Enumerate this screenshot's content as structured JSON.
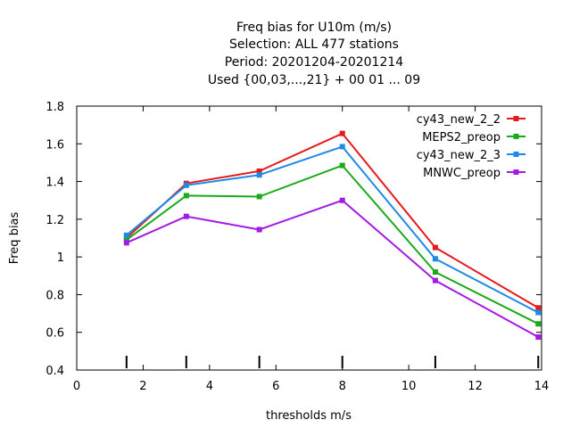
{
  "chart_data": {
    "type": "line",
    "title_lines": [
      "Freq bias  for U10m (m/s)",
      "Selection: ALL    477 stations",
      "Period: 20201204-20201214",
      "Used {00,03,...,21} + 00 01 ... 09"
    ],
    "xlabel": "thresholds m/s",
    "ylabel": "Freq bias",
    "xlim": [
      0,
      14
    ],
    "ylim": [
      0.4,
      1.8
    ],
    "xticks": [
      0,
      2,
      4,
      6,
      8,
      10,
      12,
      14
    ],
    "yticks": [
      0.4,
      0.6,
      0.8,
      1.0,
      1.2,
      1.4,
      1.6,
      1.8
    ],
    "xtick_labels": [
      "0",
      "2",
      "4",
      "6",
      "8",
      "10",
      "12",
      "14"
    ],
    "ytick_labels": [
      "0.4",
      "0.6",
      "0.8",
      "1",
      "1.2",
      "1.4",
      "1.6",
      "1.8"
    ],
    "x": [
      1.5,
      3.3,
      5.5,
      8.0,
      10.8,
      13.9
    ],
    "threshold_markers": [
      1.5,
      3.3,
      5.5,
      8.0,
      10.8,
      13.9
    ],
    "legend_position": "top-right",
    "grid": false,
    "series": [
      {
        "name": "cy43_new_2_2",
        "color": "#e41a1c",
        "values": [
          1.1,
          1.39,
          1.455,
          1.655,
          1.05,
          0.73
        ]
      },
      {
        "name": "MEPS2_preop",
        "color": "#1aaa1a",
        "values": [
          1.09,
          1.325,
          1.32,
          1.485,
          0.92,
          0.645
        ]
      },
      {
        "name": "cy43_new_2_3",
        "color": "#1e8ae6",
        "values": [
          1.115,
          1.38,
          1.435,
          1.585,
          0.99,
          0.705
        ]
      },
      {
        "name": "MNWC_preop",
        "color": "#a41ae4",
        "values": [
          1.075,
          1.215,
          1.145,
          1.3,
          0.875,
          0.575
        ]
      }
    ]
  }
}
